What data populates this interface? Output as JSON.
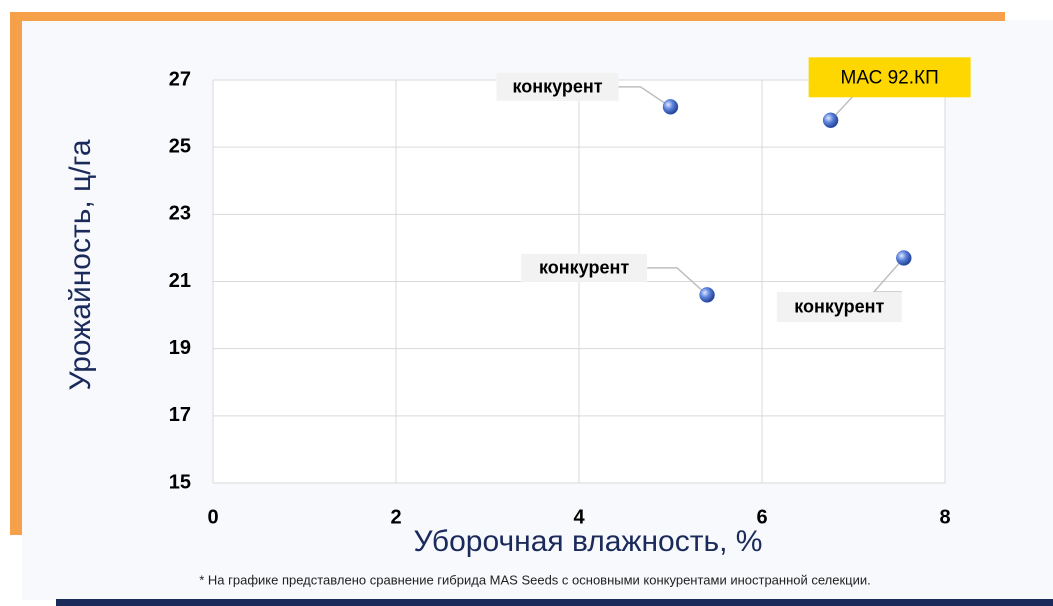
{
  "chart_data": {
    "type": "scatter",
    "x_label": "Уборочная влажность, %",
    "y_label": "Урожайность, ц/га",
    "note": "* На графике представлено сравнение гибрида MAS Seeds с основными конкурентами иностранной селекции.",
    "x": [
      5.0,
      6.75,
      5.4,
      7.55
    ],
    "values": [
      26.2,
      25.8,
      20.6,
      21.7
    ],
    "point_labels": [
      "конкурент",
      "МАС 92.КП",
      "конкурент",
      "конкурент"
    ],
    "color": "#3a64c8",
    "highlight_color": "#ffd700",
    "xlim": [
      0,
      8
    ],
    "xticks": [
      0,
      2,
      4,
      6,
      8
    ],
    "ylim": [
      15,
      27
    ],
    "yticks": [
      15,
      17,
      19,
      21,
      23,
      25,
      27
    ],
    "grid": true
  }
}
